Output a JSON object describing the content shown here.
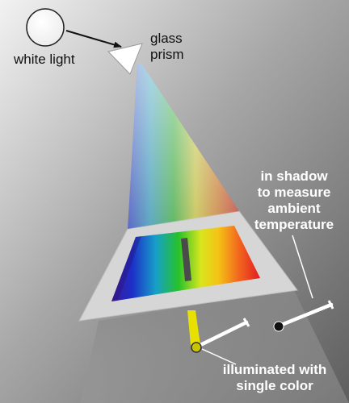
{
  "labels": {
    "white_light": "white light",
    "glass_prism": [
      "glass",
      "prism"
    ],
    "shadow_thermometer": [
      "in shadow",
      "to measure",
      "ambient",
      "temperature"
    ],
    "lit_thermometer": [
      "illuminated with",
      "single color"
    ]
  },
  "colors": {
    "background_light": "#f2f2f2",
    "background_dark": "#5e5e5e",
    "table_surface": "#d6d6d6",
    "highlighted_band": "#e8e000",
    "thermometer_bulb": "#111111",
    "thermometer_stem": "#ffffff"
  },
  "spectrum_order": [
    "violet",
    "blue",
    "cyan",
    "green",
    "yellow",
    "orange",
    "red"
  ]
}
